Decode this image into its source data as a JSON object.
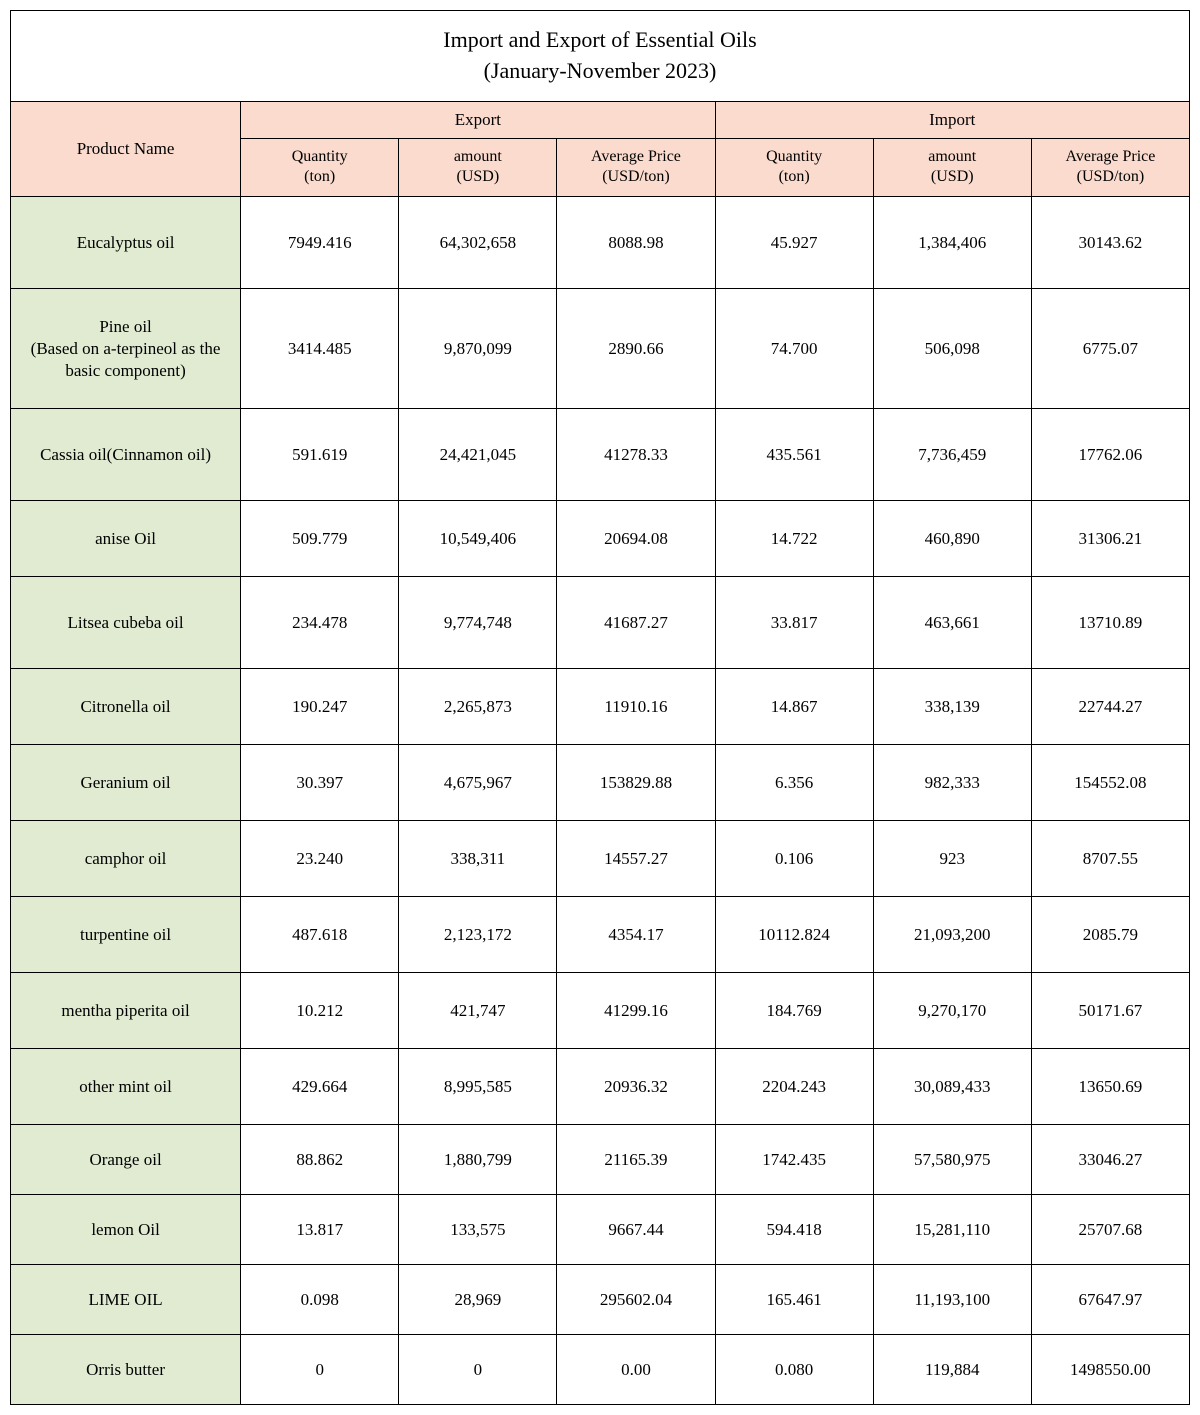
{
  "title_line1": "Import and Export of Essential Oils",
  "title_line2": "(January-November 2023)",
  "headers": {
    "product": "Product Name",
    "export": "Export",
    "import": "Import",
    "qty": "Quantity\n(ton)",
    "amt": "amount\n(USD)",
    "avg": "Average Price\n(USD/ton)"
  },
  "colors": {
    "header_bg": "#fadbce",
    "product_bg": "#e0ebd2",
    "border": "#000000",
    "bg": "#ffffff"
  },
  "rows": [
    {
      "product": "Eucalyptus oil",
      "eq": "7949.416",
      "ea": "64,302,658",
      "ep": "8088.98",
      "iq": "45.927",
      "ia": "1,384,406",
      "ip": "30143.62",
      "cls": "row-tall"
    },
    {
      "product": "Pine oil\n(Based on a-terpineol as the basic component)",
      "eq": "3414.485",
      "ea": "9,870,099",
      "ep": "2890.66",
      "iq": "74.700",
      "ia": "506,098",
      "ip": "6775.07",
      "cls": "row-xtall"
    },
    {
      "product": "Cassia oil(Cinnamon oil)",
      "eq": "591.619",
      "ea": "24,421,045",
      "ep": "41278.33",
      "iq": "435.561",
      "ia": "7,736,459",
      "ip": "17762.06",
      "cls": "row-tall"
    },
    {
      "product": "anise Oil",
      "eq": "509.779",
      "ea": "10,549,406",
      "ep": "20694.08",
      "iq": "14.722",
      "ia": "460,890",
      "ip": "31306.21",
      "cls": "row-med"
    },
    {
      "product": "Litsea cubeba oil",
      "eq": "234.478",
      "ea": "9,774,748",
      "ep": "41687.27",
      "iq": "33.817",
      "ia": "463,661",
      "ip": "13710.89",
      "cls": "row-tall"
    },
    {
      "product": "Citronella oil",
      "eq": "190.247",
      "ea": "2,265,873",
      "ep": "11910.16",
      "iq": "14.867",
      "ia": "338,139",
      "ip": "22744.27",
      "cls": "row-med"
    },
    {
      "product": "Geranium oil",
      "eq": "30.397",
      "ea": "4,675,967",
      "ep": "153829.88",
      "iq": "6.356",
      "ia": "982,333",
      "ip": "154552.08",
      "cls": "row-med"
    },
    {
      "product": "camphor oil",
      "eq": "23.240",
      "ea": "338,311",
      "ep": "14557.27",
      "iq": "0.106",
      "ia": "923",
      "ip": "8707.55",
      "cls": "row-med"
    },
    {
      "product": "turpentine oil",
      "eq": "487.618",
      "ea": "2,123,172",
      "ep": "4354.17",
      "iq": "10112.824",
      "ia": "21,093,200",
      "ip": "2085.79",
      "cls": "row-med"
    },
    {
      "product": "mentha piperita oil",
      "eq": "10.212",
      "ea": "421,747",
      "ep": "41299.16",
      "iq": "184.769",
      "ia": "9,270,170",
      "ip": "50171.67",
      "cls": "row-med"
    },
    {
      "product": "other mint oil",
      "eq": "429.664",
      "ea": "8,995,585",
      "ep": "20936.32",
      "iq": "2204.243",
      "ia": "30,089,433",
      "ip": "13650.69",
      "cls": "row-med"
    },
    {
      "product": "Orange oil",
      "eq": "88.862",
      "ea": "1,880,799",
      "ep": "21165.39",
      "iq": "1742.435",
      "ia": "57,580,975",
      "ip": "33046.27",
      "cls": "row-short"
    },
    {
      "product": "lemon Oil",
      "eq": "13.817",
      "ea": "133,575",
      "ep": "9667.44",
      "iq": "594.418",
      "ia": "15,281,110",
      "ip": "25707.68",
      "cls": "row-short"
    },
    {
      "product": "LIME OIL",
      "eq": "0.098",
      "ea": "28,969",
      "ep": "295602.04",
      "iq": "165.461",
      "ia": "11,193,100",
      "ip": "67647.97",
      "cls": "row-short"
    },
    {
      "product": "Orris butter",
      "eq": "0",
      "ea": "0",
      "ep": "0.00",
      "iq": "0.080",
      "ia": "119,884",
      "ip": "1498550.00",
      "cls": "row-short"
    }
  ]
}
